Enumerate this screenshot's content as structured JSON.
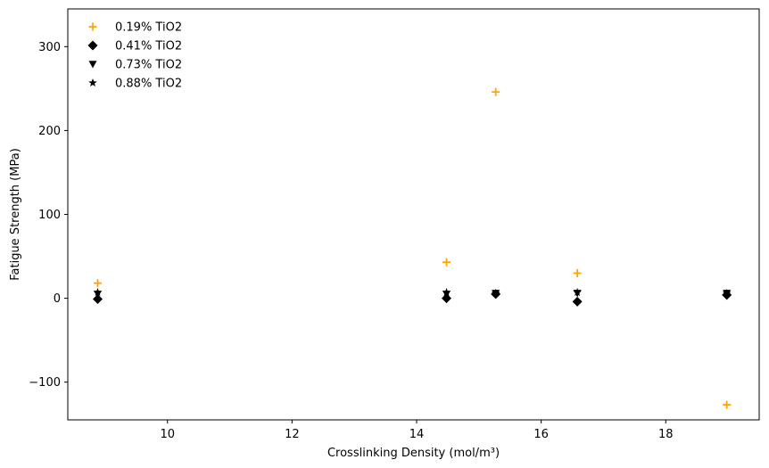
{
  "chart_data": {
    "type": "scatter",
    "xlabel": "Crosslinking Density (mol/m³)",
    "ylabel": "Fatigue Strength (MPa)",
    "xlim": [
      8.4,
      19.5
    ],
    "ylim": [
      -145,
      345
    ],
    "xticks": [
      10,
      12,
      14,
      16,
      18
    ],
    "yticks": [
      -100,
      0,
      100,
      200,
      300
    ],
    "xtick_labels": [
      "10",
      "12",
      "14",
      "16",
      "18"
    ],
    "ytick_labels": [
      "−100",
      "0",
      "100",
      "200",
      "300"
    ],
    "grid": false,
    "legend_position": "upper-left",
    "series": [
      {
        "name": "0.19% TiO2",
        "marker": "plus",
        "color": "#FFA500",
        "x": [
          8.88,
          14.48,
          15.27,
          16.58,
          18.98
        ],
        "y": [
          18,
          43,
          246,
          30,
          -127
        ]
      },
      {
        "name": "0.41% TiO2",
        "marker": "diamond",
        "color": "#000000",
        "x": [
          8.88,
          14.48,
          15.27,
          16.58,
          18.98
        ],
        "y": [
          -1,
          0,
          5,
          -4,
          4
        ]
      },
      {
        "name": "0.73% TiO2",
        "marker": "triangle-down",
        "color": "#000000",
        "x": [
          8.88,
          14.48,
          15.27,
          16.58,
          18.98
        ],
        "y": [
          5,
          5,
          6,
          6,
          6
        ]
      },
      {
        "name": "0.88% TiO2",
        "marker": "star",
        "color": "#000000",
        "x": [
          8.88,
          14.48,
          15.27,
          16.58,
          18.98
        ],
        "y": [
          7,
          7,
          6,
          7,
          6
        ]
      }
    ]
  }
}
